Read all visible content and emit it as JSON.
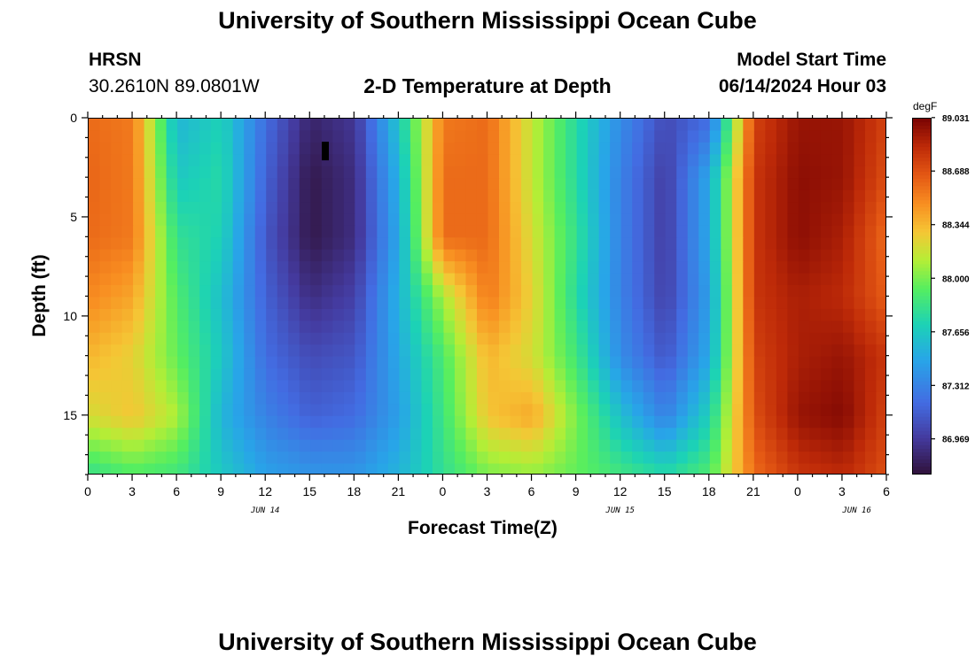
{
  "header": {
    "title": "University of Southern Mississippi Ocean Cube",
    "station": "HRSN",
    "coordinates": "30.2610N  89.0801W",
    "subtitle": "2-D Temperature at Depth",
    "model_start_label": "Model Start Time",
    "model_start_value": "06/14/2024 Hour 03"
  },
  "footer": {
    "title": "University of Southern Mississippi Ocean Cube"
  },
  "chart_data": {
    "type": "heatmap",
    "title": "2-D Temperature at Depth",
    "xlabel": "Forecast Time(Z)",
    "ylabel": "Depth (ft)",
    "x_tick_labels": [
      "0",
      "3",
      "6",
      "9",
      "12",
      "15",
      "18",
      "21",
      "0",
      "3",
      "6",
      "9",
      "12",
      "15",
      "18",
      "21",
      "0",
      "3",
      "6"
    ],
    "x_date_labels": [
      "JUN 14",
      "JUN 15",
      "JUN 16"
    ],
    "x_range_hours": [
      0,
      54
    ],
    "y_ticks": [
      0,
      5,
      10,
      15
    ],
    "y_range_ft": [
      0,
      18
    ],
    "y_inverted": true,
    "colorbar": {
      "unit": "degF",
      "tick_labels": [
        "89.031",
        "88.688",
        "88.344",
        "88.000",
        "87.656",
        "87.312",
        "86.969"
      ],
      "min": 86.74,
      "max": 89.03
    },
    "time_hours": [
      0,
      3,
      6,
      9,
      12,
      15,
      18,
      21,
      24,
      27,
      30,
      33,
      36,
      39,
      42,
      45,
      48,
      51,
      54
    ],
    "depth_ft": [
      0,
      3,
      6,
      9,
      12,
      15,
      18
    ],
    "temperature_degF": [
      [
        88.6,
        88.55,
        87.55,
        87.7,
        87.2,
        86.85,
        86.95,
        87.65,
        88.55,
        88.6,
        88.15,
        87.75,
        87.35,
        87.05,
        87.2,
        88.75,
        88.95,
        88.95,
        88.75
      ],
      [
        88.62,
        88.55,
        87.65,
        87.75,
        87.15,
        86.78,
        86.9,
        87.55,
        88.6,
        88.6,
        88.15,
        87.75,
        87.3,
        86.98,
        87.5,
        88.8,
        88.98,
        88.95,
        88.7
      ],
      [
        88.6,
        88.55,
        87.8,
        87.7,
        87.1,
        86.78,
        86.9,
        87.5,
        88.6,
        88.6,
        88.2,
        87.8,
        87.3,
        86.98,
        87.5,
        88.8,
        88.98,
        88.9,
        88.6
      ],
      [
        88.5,
        88.4,
        87.9,
        87.6,
        87.15,
        86.9,
        87.0,
        87.55,
        88.1,
        88.55,
        88.25,
        87.75,
        87.3,
        87.0,
        87.45,
        88.8,
        88.9,
        88.85,
        88.65
      ],
      [
        88.35,
        88.25,
        87.95,
        87.65,
        87.2,
        87.05,
        87.1,
        87.5,
        87.9,
        88.35,
        88.2,
        87.85,
        87.35,
        87.1,
        87.5,
        88.75,
        88.9,
        88.95,
        88.8
      ],
      [
        88.2,
        88.3,
        88.1,
        87.55,
        87.3,
        87.15,
        87.2,
        87.45,
        87.85,
        88.3,
        88.4,
        88.0,
        87.6,
        87.3,
        87.7,
        88.7,
        88.95,
        89.0,
        88.75
      ],
      [
        87.8,
        87.9,
        87.85,
        87.65,
        87.45,
        87.4,
        87.4,
        87.55,
        87.8,
        88.0,
        88.05,
        87.95,
        87.85,
        87.75,
        87.9,
        88.6,
        88.8,
        88.85,
        88.7
      ]
    ],
    "marker": {
      "time_hours": 16,
      "depth_ft": 1.7
    }
  }
}
